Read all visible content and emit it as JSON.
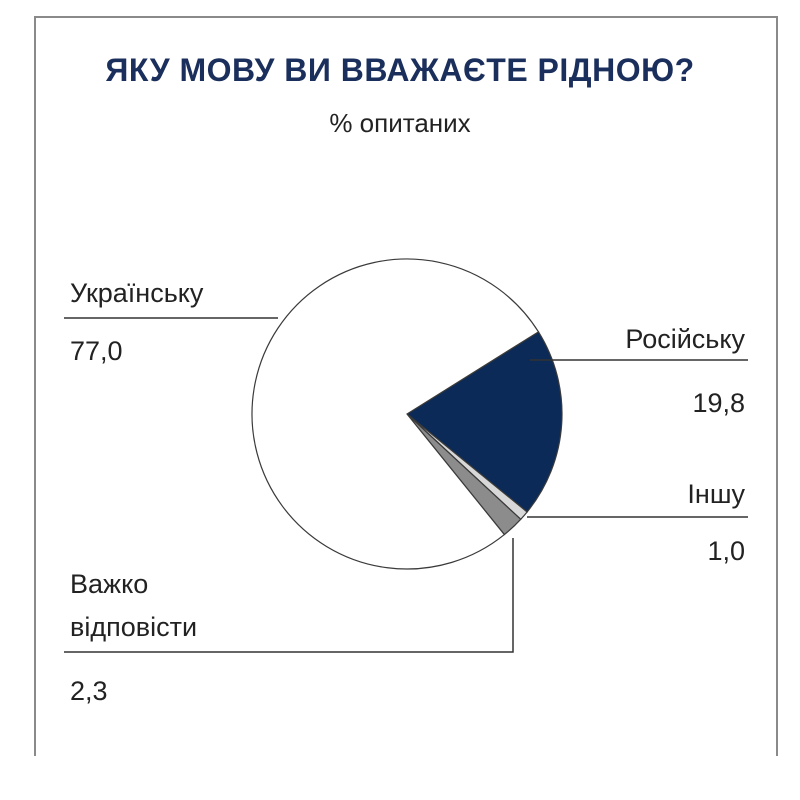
{
  "chart_data": {
    "type": "pie",
    "title": "ЯКУ МОВУ ВИ ВВАЖАЄТЕ РІДНОЮ?",
    "subtitle": "% опитаних",
    "slices": [
      {
        "label": [
          "Російську"
        ],
        "value": 19.8,
        "value_label": "19,8",
        "color": "#0b2a57"
      },
      {
        "label": [
          "Іншу"
        ],
        "value": 1.0,
        "value_label": "1,0",
        "color": "#d8d8d8"
      },
      {
        "label": [
          "Важко",
          "відповісти"
        ],
        "value": 2.3,
        "value_label": "2,3",
        "color": "#8c8c8c"
      },
      {
        "label": [
          "Українську"
        ],
        "value": 77.0,
        "value_label": "77,0",
        "color": "#ffffff"
      }
    ]
  }
}
